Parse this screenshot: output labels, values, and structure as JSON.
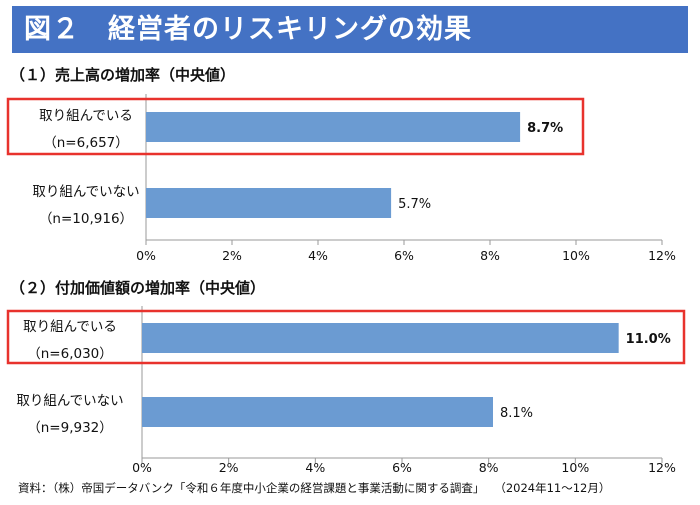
{
  "figure": {
    "title": "図２　経営者のリスキリングの効果",
    "source_label": "資料：（株）帝国データバンク「令和６年度中小企業の経営課題と事業活動に関する調査」",
    "source_period": "（2024年11～12月）"
  },
  "colors": {
    "title_bar": "#4472c4",
    "bar": "#6b9bd2",
    "highlight": "#e8322d",
    "axis": "#9a9a9a"
  },
  "chart_data": [
    {
      "type": "bar",
      "orientation": "horizontal",
      "title": "（１）売上高の増加率（中央値）",
      "categories": [
        "取り組んでいる",
        "取り組んでいない"
      ],
      "sample_sizes": [
        "（n=6,657）",
        "（n=10,916）"
      ],
      "values": [
        8.7,
        5.7
      ],
      "value_labels": [
        "8.7%",
        "5.7%"
      ],
      "highlighted": [
        true,
        false
      ],
      "xlim": [
        0,
        12
      ],
      "xticks": [
        "0%",
        "2%",
        "4%",
        "6%",
        "8%",
        "10%",
        "12%"
      ],
      "grid": false
    },
    {
      "type": "bar",
      "orientation": "horizontal",
      "title": "（２）付加価値額の増加率（中央値）",
      "categories": [
        "取り組んでいる",
        "取り組んでいない"
      ],
      "sample_sizes": [
        "（n=6,030）",
        "（n=9,932）"
      ],
      "values": [
        11.0,
        8.1
      ],
      "value_labels": [
        "11.0%",
        "8.1%"
      ],
      "highlighted": [
        true,
        false
      ],
      "xlim": [
        0,
        12
      ],
      "xticks": [
        "0%",
        "2%",
        "4%",
        "6%",
        "8%",
        "10%",
        "12%"
      ],
      "grid": false
    }
  ]
}
